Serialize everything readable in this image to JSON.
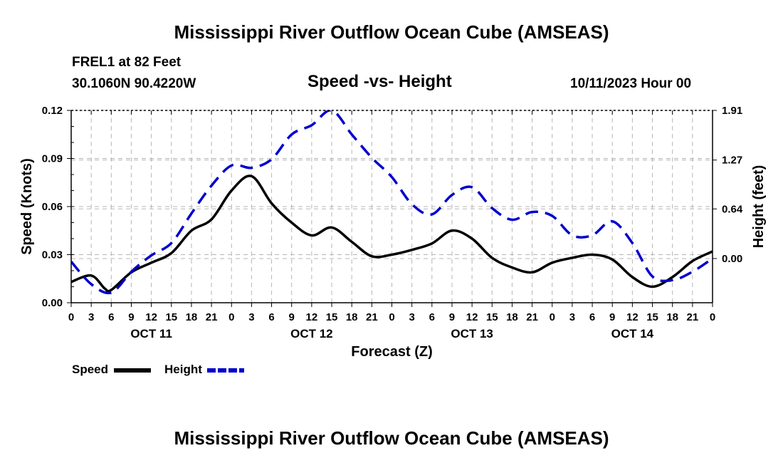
{
  "header": {
    "title": "Mississippi River Outflow Ocean Cube (AMSEAS)",
    "station": "FREL1 at 82 Feet",
    "coords": "30.1060N  90.4220W",
    "subtitle": "Speed -vs- Height",
    "datetime": "10/11/2023 Hour 00"
  },
  "footer": {
    "title": "Mississippi River Outflow Ocean Cube (AMSEAS)"
  },
  "legend": {
    "speed_label": "Speed",
    "height_label": "Height"
  },
  "chart_data": {
    "type": "line",
    "title": "Speed -vs- Height",
    "xlabel": "Forecast (Z)",
    "ylabel": "Speed (Knots)",
    "y2label": "Height (feet)",
    "x_range": [
      0,
      96
    ],
    "ylim": [
      0,
      0.12
    ],
    "y2lim": [
      -0.57,
      1.91
    ],
    "yticks": [
      "0.00",
      "0.03",
      "0.06",
      "0.09",
      "0.12"
    ],
    "yticks_values": [
      0,
      0.03,
      0.06,
      0.09,
      0.12
    ],
    "y2ticks": [
      "0.00",
      "0.64",
      "1.27",
      "1.91"
    ],
    "y2ticks_values": [
      0,
      0.64,
      1.27,
      1.91
    ],
    "xticks": [
      "0",
      "3",
      "6",
      "9",
      "12",
      "15",
      "18",
      "21",
      "0",
      "3",
      "6",
      "9",
      "12",
      "15",
      "18",
      "21",
      "0",
      "3",
      "6",
      "9",
      "12",
      "15",
      "18",
      "21",
      "0",
      "3",
      "6",
      "9",
      "12",
      "15",
      "18",
      "21",
      "0"
    ],
    "date_labels": [
      {
        "label": "OCT 11",
        "hour": 12
      },
      {
        "label": "OCT 12",
        "hour": 36
      },
      {
        "label": "OCT 13",
        "hour": 60
      },
      {
        "label": "OCT 14",
        "hour": 84
      }
    ],
    "series": [
      {
        "name": "Speed",
        "color": "#000000",
        "axis": "left",
        "x": [
          0,
          3,
          5,
          6,
          9,
          12,
          15,
          18,
          21,
          24,
          27,
          30,
          33,
          36,
          39,
          42,
          45,
          48,
          51,
          54,
          57,
          60,
          63,
          66,
          69,
          72,
          75,
          78,
          81,
          84,
          87,
          90,
          93,
          96
        ],
        "values": [
          0.013,
          0.017,
          0.009,
          0.008,
          0.019,
          0.025,
          0.031,
          0.045,
          0.052,
          0.07,
          0.079,
          0.062,
          0.05,
          0.042,
          0.047,
          0.038,
          0.029,
          0.03,
          0.033,
          0.037,
          0.045,
          0.04,
          0.028,
          0.022,
          0.019,
          0.025,
          0.028,
          0.03,
          0.027,
          0.016,
          0.01,
          0.016,
          0.026,
          0.032
        ]
      },
      {
        "name": "Height",
        "color": "#0000cc",
        "axis": "right",
        "x": [
          0,
          3,
          6,
          9,
          12,
          15,
          18,
          21,
          24,
          27,
          30,
          33,
          36,
          39,
          42,
          45,
          48,
          51,
          54,
          57,
          60,
          63,
          66,
          69,
          72,
          75,
          78,
          81,
          84,
          87,
          90,
          93,
          96
        ],
        "values": [
          -0.04,
          -0.33,
          -0.44,
          -0.17,
          0.04,
          0.2,
          0.58,
          0.94,
          1.2,
          1.17,
          1.28,
          1.6,
          1.72,
          1.91,
          1.6,
          1.3,
          1.05,
          0.7,
          0.57,
          0.82,
          0.92,
          0.65,
          0.5,
          0.6,
          0.55,
          0.3,
          0.3,
          0.48,
          0.2,
          -0.23,
          -0.28,
          -0.17,
          0.0
        ]
      }
    ]
  }
}
